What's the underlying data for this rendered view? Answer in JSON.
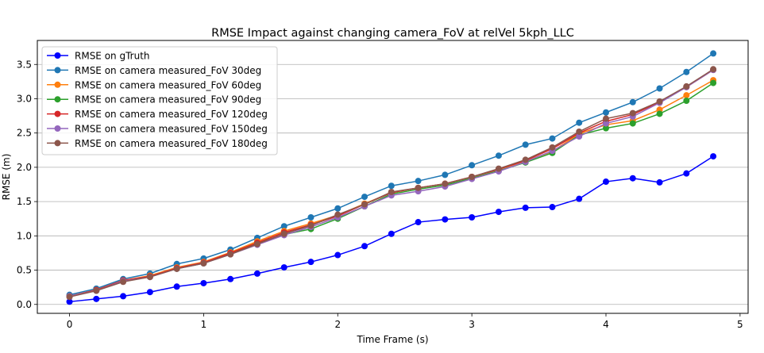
{
  "chart_data": {
    "type": "line",
    "title": "RMSE Impact against changing camera_FoV at relVel 5kph_LLC",
    "xlabel": "Time Frame (s)",
    "ylabel": "RMSE (m)",
    "xlim": [
      -0.24,
      5.06
    ],
    "ylim": [
      -0.13,
      3.85
    ],
    "xticks": [
      0,
      1,
      2,
      3,
      4,
      5
    ],
    "yticks": [
      0.0,
      0.5,
      1.0,
      1.5,
      2.0,
      2.5,
      3.0,
      3.5
    ],
    "xtick_labels": [
      "0",
      "1",
      "2",
      "3",
      "4",
      "5"
    ],
    "ytick_labels": [
      "0.0",
      "0.5",
      "1.0",
      "1.5",
      "2.0",
      "2.5",
      "3.0",
      "3.5"
    ],
    "grid": "horizontal",
    "legend_position": "top-left",
    "x": [
      0,
      0.2,
      0.4,
      0.6,
      0.8,
      1.0,
      1.2,
      1.4,
      1.6,
      1.8,
      2.0,
      2.2,
      2.4,
      2.6,
      2.8,
      3.0,
      3.2,
      3.4,
      3.6,
      3.8,
      4.0,
      4.2,
      4.4,
      4.6,
      4.8
    ],
    "series": [
      {
        "name": "RMSE on gTruth",
        "color": "#0000ff",
        "values": [
          0.04,
          0.08,
          0.12,
          0.18,
          0.26,
          0.31,
          0.37,
          0.45,
          0.54,
          0.62,
          0.72,
          0.85,
          1.03,
          1.2,
          1.24,
          1.27,
          1.35,
          1.41,
          1.42,
          1.54,
          1.79,
          1.84,
          1.78,
          1.91,
          2.16
        ]
      },
      {
        "name": "RMSE on camera measured_FoV 30deg",
        "color": "#1f77b4",
        "values": [
          0.14,
          0.23,
          0.37,
          0.45,
          0.59,
          0.67,
          0.8,
          0.97,
          1.14,
          1.27,
          1.4,
          1.57,
          1.73,
          1.8,
          1.89,
          2.03,
          2.17,
          2.33,
          2.42,
          2.65,
          2.8,
          2.95,
          3.15,
          3.39,
          3.66
        ]
      },
      {
        "name": "RMSE on camera measured_FoV 60deg",
        "color": "#ff7f0e",
        "values": [
          0.12,
          0.21,
          0.35,
          0.42,
          0.54,
          0.62,
          0.76,
          0.92,
          1.07,
          1.18,
          1.3,
          1.47,
          1.63,
          1.7,
          1.76,
          1.86,
          1.97,
          2.09,
          2.23,
          2.49,
          2.62,
          2.68,
          2.84,
          3.05,
          3.27
        ]
      },
      {
        "name": "RMSE on camera measured_FoV 90deg",
        "color": "#2ca02c",
        "values": [
          0.12,
          0.2,
          0.34,
          0.41,
          0.52,
          0.6,
          0.74,
          0.89,
          1.02,
          1.1,
          1.25,
          1.43,
          1.61,
          1.68,
          1.74,
          1.84,
          1.95,
          2.07,
          2.21,
          2.47,
          2.57,
          2.64,
          2.78,
          2.97,
          3.23
        ]
      },
      {
        "name": "RMSE on camera measured_FoV 120deg",
        "color": "#d62728",
        "values": [
          0.12,
          0.21,
          0.35,
          0.41,
          0.53,
          0.61,
          0.75,
          0.9,
          1.05,
          1.16,
          1.29,
          1.46,
          1.63,
          1.7,
          1.76,
          1.86,
          1.97,
          2.1,
          2.27,
          2.5,
          2.67,
          2.77,
          2.95,
          3.17,
          3.42
        ]
      },
      {
        "name": "RMSE on camera measured_FoV 150deg",
        "color": "#9467bd",
        "values": [
          0.12,
          0.2,
          0.34,
          0.4,
          0.52,
          0.6,
          0.73,
          0.87,
          1.01,
          1.13,
          1.27,
          1.43,
          1.59,
          1.65,
          1.72,
          1.83,
          1.94,
          2.08,
          2.24,
          2.45,
          2.64,
          2.74,
          2.94,
          3.17,
          3.42
        ]
      },
      {
        "name": "RMSE on camera measured_FoV 180deg",
        "color": "#8c564b",
        "values": [
          0.11,
          0.2,
          0.33,
          0.4,
          0.52,
          0.6,
          0.73,
          0.88,
          1.03,
          1.15,
          1.31,
          1.46,
          1.64,
          1.7,
          1.76,
          1.86,
          1.98,
          2.11,
          2.29,
          2.52,
          2.71,
          2.79,
          2.96,
          3.18,
          3.43
        ]
      }
    ]
  }
}
